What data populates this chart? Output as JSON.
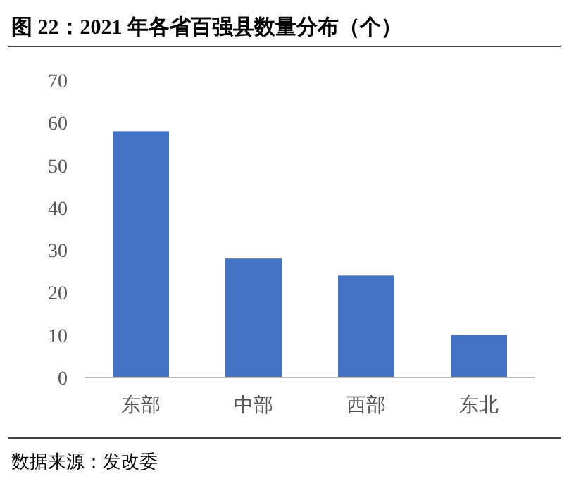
{
  "chart_data": {
    "type": "bar",
    "title": "图 22：2021 年各省百强县数量分布（个）",
    "categories": [
      "东部",
      "中部",
      "西部",
      "东北"
    ],
    "values": [
      58,
      28,
      24,
      10
    ],
    "color": "#4472c4",
    "ylim": [
      0,
      70
    ],
    "yticks": [
      0,
      10,
      20,
      30,
      40,
      50,
      60,
      70
    ],
    "grid": false,
    "annotations": [
      "数据来源：发改委"
    ]
  }
}
